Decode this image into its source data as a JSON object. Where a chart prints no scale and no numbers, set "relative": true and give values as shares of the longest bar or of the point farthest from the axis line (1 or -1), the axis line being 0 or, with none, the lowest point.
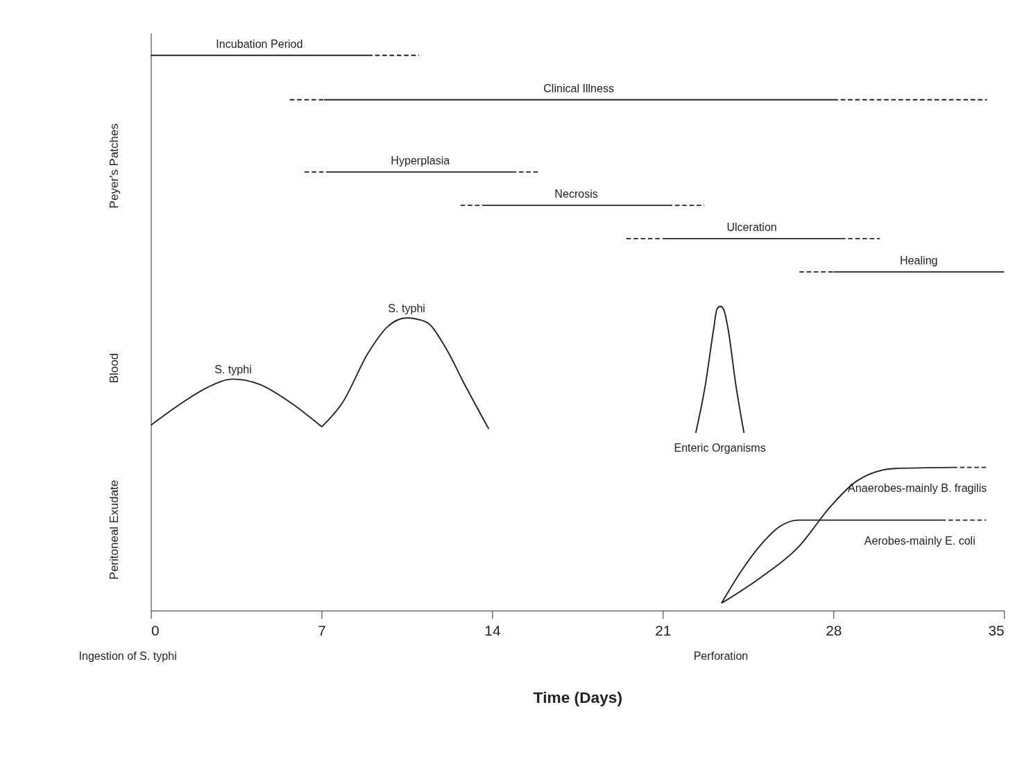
{
  "chart_data": {
    "type": "line",
    "relative": true,
    "xlabel": "Time (Days)",
    "xlim": [
      0,
      35
    ],
    "xticks": [
      0,
      7,
      14,
      21,
      28,
      35
    ],
    "grid": false,
    "marker": "none",
    "series": [
      {
        "name": "Incubation Period",
        "color": "#222222",
        "line_style": "solid",
        "x": [
          0,
          8.9
        ],
        "values": [
          1.0,
          1.0
        ]
      },
      {
        "color": "#222222",
        "line_style": "dashed",
        "x": [
          8.9,
          11.0
        ],
        "values": [
          1.0,
          1.0
        ]
      },
      {
        "color": "#222222",
        "line_style": "dashed",
        "x": [
          5.7,
          7.1
        ],
        "values": [
          0.92,
          0.92
        ]
      },
      {
        "name": "Clinical Illness",
        "color": "#222222",
        "line_style": "solid",
        "x": [
          7.1,
          28.0
        ],
        "values": [
          0.92,
          0.92
        ]
      },
      {
        "color": "#222222",
        "line_style": "dashed",
        "x": [
          28.0,
          34.3
        ],
        "values": [
          0.92,
          0.92
        ]
      },
      {
        "color": "#222222",
        "line_style": "dashed",
        "x": [
          6.3,
          7.3
        ],
        "values": [
          0.79,
          0.79
        ]
      },
      {
        "name": "Hyperplasia",
        "color": "#222222",
        "line_style": "solid",
        "x": [
          7.3,
          14.8
        ],
        "values": [
          0.79,
          0.79
        ]
      },
      {
        "color": "#222222",
        "line_style": "dashed",
        "x": [
          14.8,
          15.9
        ],
        "values": [
          0.79,
          0.79
        ]
      },
      {
        "color": "#222222",
        "line_style": "dashed",
        "x": [
          12.7,
          13.7
        ],
        "values": [
          0.73,
          0.73
        ]
      },
      {
        "name": "Necrosis",
        "color": "#222222",
        "line_style": "solid",
        "x": [
          13.7,
          21.2
        ],
        "values": [
          0.73,
          0.73
        ]
      },
      {
        "color": "#222222",
        "line_style": "dashed",
        "x": [
          21.2,
          22.7
        ],
        "values": [
          0.73,
          0.73
        ]
      },
      {
        "color": "#222222",
        "line_style": "dashed",
        "x": [
          19.5,
          21.0
        ],
        "values": [
          0.67,
          0.67
        ]
      },
      {
        "name": "Ulceration",
        "color": "#222222",
        "line_style": "solid",
        "x": [
          21.0,
          28.3
        ],
        "values": [
          0.67,
          0.67
        ]
      },
      {
        "color": "#222222",
        "line_style": "dashed",
        "x": [
          28.3,
          29.9
        ],
        "values": [
          0.67,
          0.67
        ]
      },
      {
        "color": "#222222",
        "line_style": "dashed",
        "x": [
          26.6,
          28.0
        ],
        "values": [
          0.61,
          0.61
        ]
      },
      {
        "name": "Healing",
        "color": "#222222",
        "line_style": "solid",
        "x": [
          28.0,
          35.0
        ],
        "values": [
          0.61,
          0.61
        ]
      },
      {
        "name": "S. typhi",
        "color": "#222222",
        "line_style": "solid",
        "x": [
          0,
          1.27,
          2.32,
          3.37,
          4.43,
          5.75,
          7.01
        ],
        "values": [
          0.334,
          0.374,
          0.402,
          0.417,
          0.408,
          0.374,
          0.331
        ]
      },
      {
        "name": "S. typhi",
        "color": "#222222",
        "line_style": "solid",
        "x": [
          7.01,
          7.85,
          8.91,
          9.7,
          10.49,
          11.28,
          12.07,
          12.86,
          13.86
        ],
        "values": [
          0.331,
          0.374,
          0.464,
          0.511,
          0.527,
          0.52,
          0.475,
          0.408,
          0.327
        ]
      },
      {
        "name": "Enteric Organisms",
        "color": "#222222",
        "line_style": "solid",
        "x": [
          22.35,
          22.75,
          23.09,
          23.22,
          23.36,
          23.49,
          23.67,
          23.99,
          24.33
        ],
        "values": [
          0.32,
          0.408,
          0.509,
          0.543,
          0.548,
          0.543,
          0.509,
          0.408,
          0.32
        ]
      },
      {
        "name": "Anaerobes-mainly B. fragilis",
        "color": "#222222",
        "line_style": "solid",
        "x": [
          23.41,
          24.99,
          26.57,
          27.89,
          28.94,
          30.52,
          32.89
        ],
        "values": [
          0.0135,
          0.059,
          0.115,
          0.188,
          0.233,
          0.256,
          0.258
        ]
      },
      {
        "color": "#222222",
        "line_style": "dashed",
        "x": [
          32.89,
          34.26
        ],
        "values": [
          0.258,
          0.258
        ]
      },
      {
        "name": "Aerobes-mainly E. coli",
        "color": "#222222",
        "line_style": "solid",
        "x": [
          23.41,
          24.2,
          24.99,
          25.78,
          26.57,
          28.15,
          32.42
        ],
        "values": [
          0.0135,
          0.07,
          0.117,
          0.151,
          0.163,
          0.163,
          0.163
        ]
      },
      {
        "color": "#222222",
        "line_style": "dashed",
        "x": [
          32.42,
          34.26
        ],
        "values": [
          0.163,
          0.163
        ]
      }
    ],
    "annotations": [
      "Peyer's Patches",
      "Blood",
      "Peritoneal Exudate",
      "Ingestion of S. typhi",
      "Perforation"
    ]
  }
}
